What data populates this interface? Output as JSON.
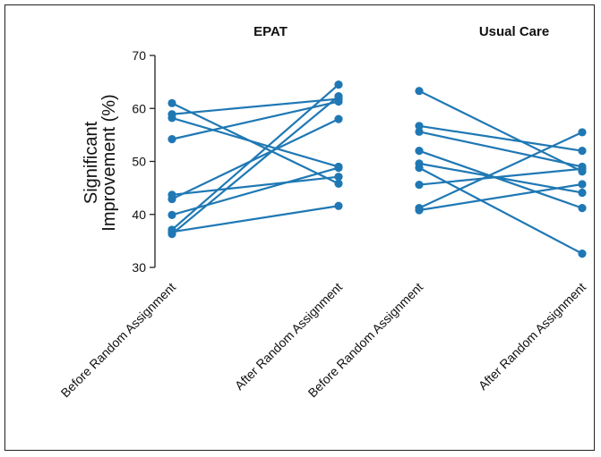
{
  "colors": {
    "series": "#1f78b4",
    "axis": "#222222",
    "text": "#111111"
  },
  "chart_data": {
    "type": "line",
    "ylabel_lines": [
      "Significant",
      "Improvement (%)"
    ],
    "ylim": [
      30,
      70
    ],
    "yticks": [
      "30",
      "40",
      "50",
      "60",
      "70"
    ],
    "grid": false,
    "panels": [
      {
        "title": "EPAT",
        "categories": [
          "Before Random Assignment",
          "After Random Assignment"
        ],
        "series": [
          {
            "values": [
              61.0,
              45.8
            ]
          },
          {
            "values": [
              58.9,
              61.8
            ]
          },
          {
            "values": [
              58.2,
              49.0
            ]
          },
          {
            "values": [
              54.2,
              61.3
            ]
          },
          {
            "values": [
              43.7,
              47.1
            ]
          },
          {
            "values": [
              42.9,
              58.0
            ]
          },
          {
            "values": [
              39.9,
              48.8
            ]
          },
          {
            "values": [
              37.1,
              64.5
            ]
          },
          {
            "values": [
              36.7,
              41.6
            ]
          },
          {
            "values": [
              36.3,
              62.3
            ]
          }
        ]
      },
      {
        "title": "Usual Care",
        "categories": [
          "Before Random Assignment",
          "After Random Assignment"
        ],
        "series": [
          {
            "values": [
              63.3,
              48.1
            ]
          },
          {
            "values": [
              56.7,
              52.0
            ]
          },
          {
            "values": [
              55.6,
              49.0
            ]
          },
          {
            "values": [
              52.0,
              41.2
            ]
          },
          {
            "values": [
              49.6,
              44.1
            ]
          },
          {
            "values": [
              48.8,
              32.6
            ]
          },
          {
            "values": [
              45.6,
              48.6
            ]
          },
          {
            "values": [
              41.2,
              55.5
            ]
          },
          {
            "values": [
              40.8,
              45.7
            ]
          }
        ]
      }
    ]
  }
}
